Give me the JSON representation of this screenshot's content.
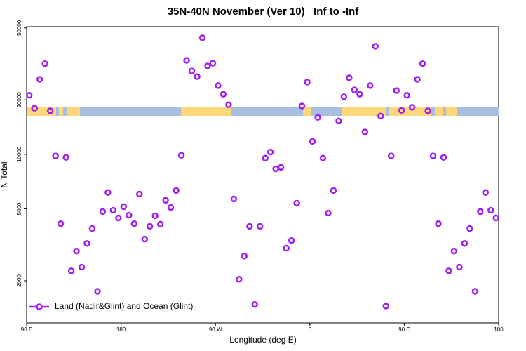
{
  "chart_data": {
    "type": "scatter",
    "title": "35N-40N November (Ver 10)   Inf to -Inf",
    "x_label": "Longitude (deg E)",
    "y_label": "N Total",
    "log_y": true,
    "legend_position": "bottom-left",
    "xlim": [
      90,
      540
    ],
    "ylim": [
      1170,
      50800
    ],
    "xticks": [
      {
        "value": 90,
        "label": "90 E"
      },
      180,
      {
        "value": 270,
        "label": "90 W"
      },
      {
        "value": 360,
        "label": "0"
      },
      {
        "value": 450,
        "label": "90 E"
      },
      {
        "value": 540,
        "label": "180"
      }
    ],
    "yticks": [
      2000,
      5000,
      10000,
      20000,
      50000
    ],
    "series": [
      {
        "name": "Land (Nadir&Glint) and Ocean (Glint)",
        "color": "#a020f0",
        "x": [
          92.5,
          97.5,
          102.5,
          107.5,
          112.5,
          117.5,
          122.5,
          127.5,
          132.5,
          137.5,
          142.5,
          147.5,
          152.5,
          157.5,
          162.5,
          167.5,
          172.5,
          177.5,
          182.5,
          187.5,
          192.5,
          197.5,
          202.5,
          207.5,
          212.5,
          217.5,
          222.5,
          227.5,
          232.5,
          237.5,
          242.5,
          247.5,
          252.5,
          257.5,
          262.5,
          267.5,
          272.5,
          277.5,
          282.5,
          287.5,
          292.5,
          297.5,
          302.5,
          307.5,
          312.5,
          317.5,
          322.5,
          327.5,
          332.5,
          337.5,
          342.5,
          347.5,
          352.5,
          357.5,
          362.5,
          367.5,
          372.5,
          377.5,
          382.5,
          387.5,
          392.5,
          397.5,
          402.5,
          407.5,
          412.5,
          417.5,
          422.5,
          427.5,
          432.5,
          437.5,
          442.5,
          447.5,
          452.5,
          457.5,
          462.5,
          467.5,
          472.5,
          477.5,
          482.5,
          487.5,
          492.5,
          497.5,
          502.5,
          507.5,
          512.5,
          517.5,
          522.5,
          527.5,
          532.5,
          537.5
        ],
        "values": [
          21200,
          18000,
          26000,
          31700,
          17400,
          9800,
          4140,
          9620,
          2270,
          2920,
          2380,
          3220,
          3890,
          1750,
          4830,
          6150,
          4910,
          4450,
          5140,
          4610,
          4140,
          6030,
          3400,
          4000,
          4570,
          4110,
          5570,
          5090,
          6310,
          9880,
          33100,
          28900,
          26900,
          44100,
          30800,
          31900,
          24000,
          21500,
          18800,
          5670,
          2040,
          2740,
          4000,
          1480,
          4000,
          9530,
          10300,
          8330,
          8480,
          3030,
          3340,
          5370,
          18500,
          25100,
          11800,
          16000,
          9530,
          4740,
          6310,
          15300,
          20800,
          26500,
          22700,
          21500,
          13300,
          24000,
          39600,
          16300,
          1450,
          9800,
          22500,
          17500,
          21200,
          18200,
          26000,
          31700,
          17400,
          9800,
          4140,
          9620,
          2270,
          2920,
          2380,
          3220,
          3890,
          1750,
          4830,
          6150,
          4910,
          4450
        ]
      }
    ]
  }
}
